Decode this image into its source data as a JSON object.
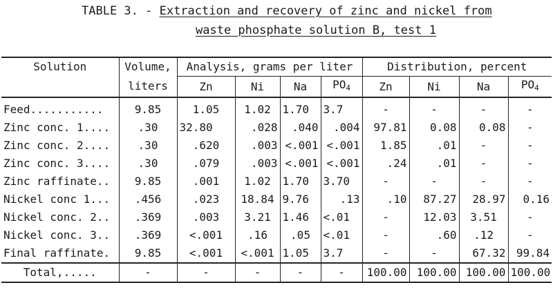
{
  "title": {
    "label": "TABLE 3. - ",
    "line1": "Extraction and recovery of zinc and nickel from",
    "line2": "waste phosphate solution B, test 1"
  },
  "header": {
    "solution": "Solution",
    "volume_line1": "Volume,",
    "volume_line2": "liters",
    "analysis": "Analysis, grams per liter",
    "distribution": "Distribution, percent",
    "cols": [
      "Zn",
      "Ni",
      "Na",
      "PO",
      "Zn",
      "Ni",
      "Na",
      "PO"
    ],
    "po_subscript": "4"
  },
  "rows": [
    {
      "solution": "Feed...........",
      "volume": "9.85",
      "a_zn": "1.05",
      "a_ni": "1.02",
      "a_na": "1.70",
      "a_po4": "3.7",
      "d_zn": "-",
      "d_ni": "-",
      "d_na": "-",
      "d_po4": "-"
    },
    {
      "solution": "Zinc conc. 1....",
      "volume": ".30",
      "a_zn": "32.80",
      "a_ni": ".028",
      "a_na": ".040",
      "a_po4": ".004",
      "d_zn": "97.81",
      "d_ni": "0.08",
      "d_na": "0.08",
      "d_po4": "-"
    },
    {
      "solution": "Zinc conc. 2....",
      "volume": ".30",
      "a_zn": ".620",
      "a_ni": ".003",
      "a_na": "<.001",
      "a_po4": "<.001",
      "d_zn": "1.85",
      "d_ni": ".01",
      "d_na": "-",
      "d_po4": "-"
    },
    {
      "solution": "Zinc conc. 3....",
      "volume": ".30",
      "a_zn": ".079",
      "a_ni": ".003",
      "a_na": "<.001",
      "a_po4": "<.001",
      "d_zn": ".24",
      "d_ni": ".01",
      "d_na": "-",
      "d_po4": "-"
    },
    {
      "solution": "Zinc raffinate..",
      "volume": "9.85",
      "a_zn": ".001",
      "a_ni": "1.02",
      "a_na": "1.70",
      "a_po4": "3.70",
      "d_zn": "-",
      "d_ni": "-",
      "d_na": "-",
      "d_po4": "-"
    },
    {
      "solution": "Nickel conc 1...",
      "volume": ".456",
      "a_zn": ".023",
      "a_ni": "18.84",
      "a_na": "9.76",
      "a_po4": ".13",
      "d_zn": ".10",
      "d_ni": "87.27",
      "d_na": "28.97",
      "d_po4": "0.16"
    },
    {
      "solution": "Nickel conc. 2..",
      "volume": ".369",
      "a_zn": ".003",
      "a_ni": "3.21",
      "a_na": "1.46",
      "a_po4": "<.01",
      "d_zn": "-",
      "d_ni": "12.03",
      "d_na": "3.51",
      "d_po4": "-"
    },
    {
      "solution": "Nickel conc. 3..",
      "volume": ".369",
      "a_zn": "<.001",
      "a_ni": ".16",
      "a_na": ".05",
      "a_po4": "<.01",
      "d_zn": "-",
      "d_ni": ".60",
      "d_na": ".12",
      "d_po4": "-"
    },
    {
      "solution": "Final raffinate.",
      "volume": "9.85",
      "a_zn": "<.001",
      "a_ni": "<.001",
      "a_na": "1.05",
      "a_po4": "3.7",
      "d_zn": "-",
      "d_ni": "-",
      "d_na": "67.32",
      "d_po4": "99.84"
    },
    {
      "solution": "Total,.....",
      "volume": "-",
      "a_zn": "-",
      "a_ni": "-",
      "a_na": "-",
      "a_po4": "-",
      "d_zn": "100.00",
      "d_ni": "100.00",
      "d_na": "100.00",
      "d_po4": "100.00"
    }
  ]
}
